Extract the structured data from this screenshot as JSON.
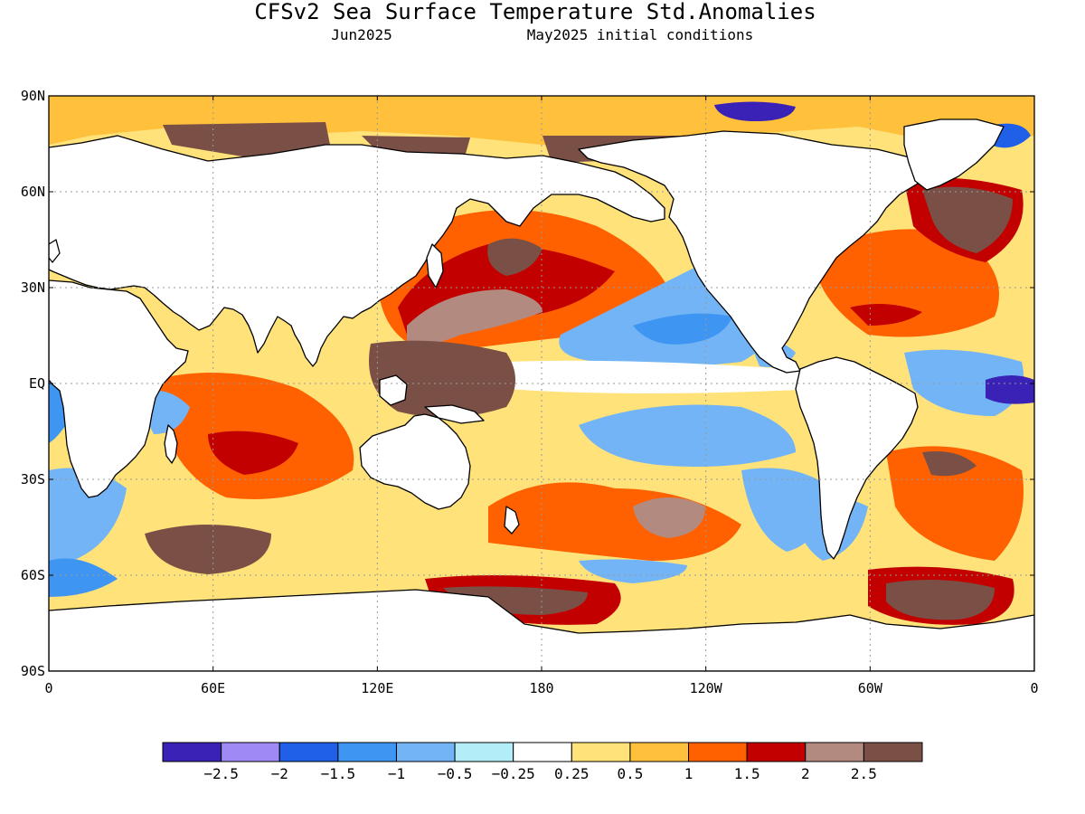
{
  "title": "CFSv2 Sea Surface Temperature Std.Anomalies",
  "subtitle_left": "Jun2025",
  "subtitle_right": "May2025 initial conditions",
  "map": {
    "lat_range": [
      -90,
      90
    ],
    "lon_range": [
      0,
      360
    ],
    "lat_ticks": [
      {
        "value": 90,
        "label": "90N"
      },
      {
        "value": 60,
        "label": "60N"
      },
      {
        "value": 30,
        "label": "30N"
      },
      {
        "value": 0,
        "label": "EQ"
      },
      {
        "value": -30,
        "label": "30S"
      },
      {
        "value": -60,
        "label": "60S"
      },
      {
        "value": -90,
        "label": "90S"
      }
    ],
    "lon_ticks": [
      {
        "value": 0,
        "label": "0"
      },
      {
        "value": 60,
        "label": "60E"
      },
      {
        "value": 120,
        "label": "120E"
      },
      {
        "value": 180,
        "label": "180"
      },
      {
        "value": 240,
        "label": "120W"
      },
      {
        "value": 300,
        "label": "60W"
      },
      {
        "value": 360,
        "label": "0"
      }
    ],
    "grid": true
  },
  "colorbar": {
    "colors": [
      "#3a22b6",
      "#9f89f5",
      "#2060e8",
      "#3e96f2",
      "#72b4f5",
      "#b3eef8",
      "#ffffff",
      "#ffe27a",
      "#ffc03c",
      "#ff6000",
      "#c20000",
      "#b38a80",
      "#7a5046"
    ],
    "labels": [
      "−2.5",
      "−2",
      "−1.5",
      "−1",
      "−0.5",
      "−0.25",
      "0.25",
      "0.5",
      "1",
      "1.5",
      "2",
      "2.5"
    ]
  },
  "colors": {
    "land": "#ffffff",
    "coast": "#000000",
    "grid": "#999999"
  }
}
